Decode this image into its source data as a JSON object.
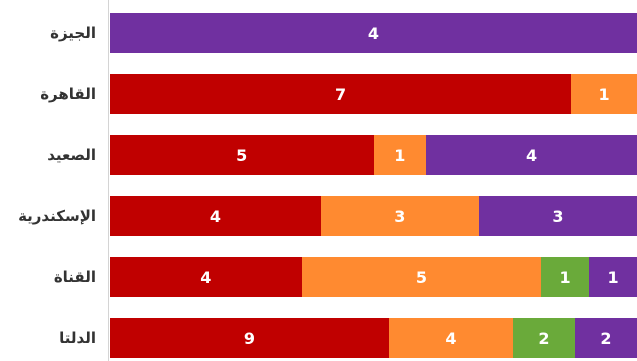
{
  "chart_data": {
    "type": "bar",
    "orientation": "horizontal",
    "stacked": true,
    "categories": [
      "الجيزة",
      "القاهرة",
      "الصعيد",
      "الإسكندرية",
      "القناة",
      "الدلتا"
    ],
    "series": [
      {
        "color": "#c00000",
        "values": [
          0,
          7,
          5,
          4,
          4,
          9
        ]
      },
      {
        "color": "#ff8a30",
        "values": [
          0,
          1,
          1,
          3,
          5,
          4
        ]
      },
      {
        "color": "#6aaa3a",
        "values": [
          0,
          0,
          0,
          0,
          1,
          2
        ]
      },
      {
        "color": "#7030a0",
        "values": [
          4,
          0,
          4,
          3,
          1,
          2
        ]
      }
    ],
    "grid": false,
    "legend": "none"
  }
}
